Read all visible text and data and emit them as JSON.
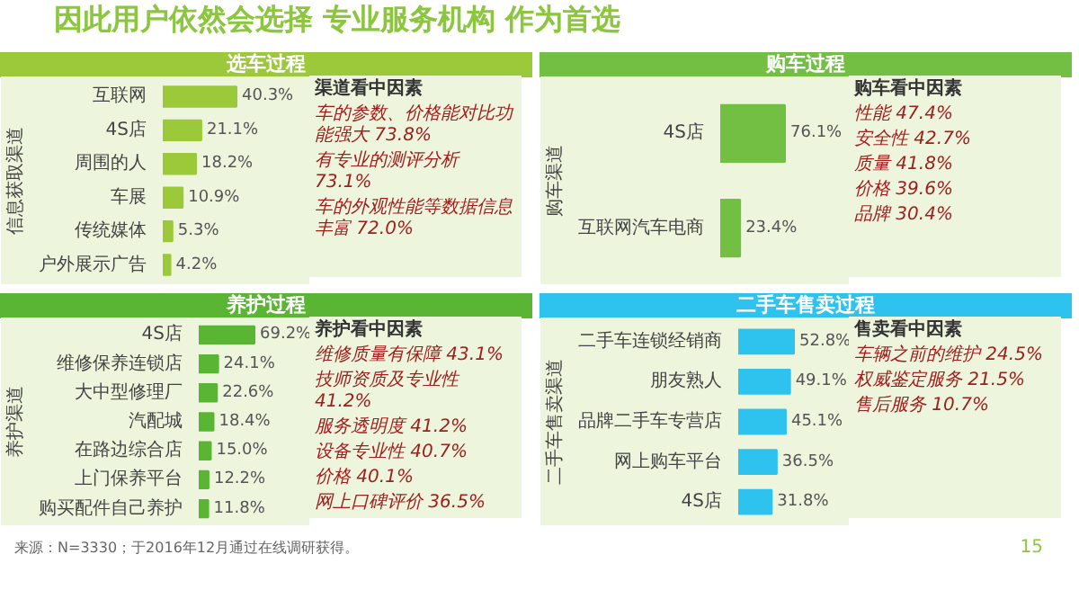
{
  "chart_data": [
    {
      "type": "other",
      "title": "因此用户依然会选择 专业服务机构 作为首选",
      "annotations": [
        "来源：N=3330；于2016年12月通过在线调研获得。",
        "15"
      ]
    },
    {
      "type": "bar",
      "orientation": "horizontal",
      "title": "选车过程",
      "ylabel": "信息获取渠道",
      "categories": [
        "互联网",
        "4S店",
        "周围的人",
        "车展",
        "传统媒体",
        "户外展示广告"
      ],
      "values": [
        40.3,
        21.1,
        18.2,
        10.9,
        5.3,
        4.2
      ],
      "value_labels": [
        "40.3%",
        "21.1%",
        "18.2%",
        "10.9%",
        "5.3%",
        "4.2%"
      ],
      "color": "#9cc93a",
      "annotations": [
        "渠道看中因素",
        "车的参数、价格能对比功能强大 73.8%",
        "有专业的测评分析 73.1%",
        "车的外观性能等数据信息丰富 72.0%"
      ]
    },
    {
      "type": "bar",
      "orientation": "horizontal",
      "title": "购车过程",
      "ylabel": "购车渠道",
      "categories": [
        "4S店",
        "互联网汽车电商"
      ],
      "values": [
        76.1,
        23.4
      ],
      "value_labels": [
        "76.1%",
        "23.4%"
      ],
      "color": "#72bf44",
      "annotations": [
        "购车看中因素",
        "性能 47.4%",
        "安全性 42.7%",
        "质量 41.8%",
        "价格 39.6%",
        "品牌 30.4%"
      ]
    },
    {
      "type": "bar",
      "orientation": "horizontal",
      "title": "养护过程",
      "ylabel": "养护渠道",
      "categories": [
        "4S店",
        "维修保养连锁店",
        "大中型修理厂",
        "汽配城",
        "在路边综合店",
        "上门保养平台",
        "购买配件自己养护"
      ],
      "values": [
        69.2,
        24.1,
        22.6,
        18.4,
        15.0,
        12.2,
        11.8
      ],
      "value_labels": [
        "69.2%",
        "24.1%",
        "22.6%",
        "18.4%",
        "15.0%",
        "12.2%",
        "11.8%"
      ],
      "color": "#5bb534",
      "annotations": [
        "养护看中因素",
        "维修质量有保障 43.1%",
        "技师资质及专业性 41.2%",
        "服务透明度 41.2%",
        "设备专业性 40.7%",
        "价格 40.1%",
        "网上口碑评价 36.5%"
      ]
    },
    {
      "type": "bar",
      "orientation": "horizontal",
      "title": "二手车售卖过程",
      "ylabel": "二手车售卖渠道",
      "categories": [
        "二手车连锁经销商",
        "朋友熟人",
        "品牌二手车专营店",
        "网上购车平台",
        "4S店"
      ],
      "values": [
        52.8,
        49.1,
        45.1,
        36.5,
        31.8
      ],
      "value_labels": [
        "52.8%",
        "49.1%",
        "45.1%",
        "36.5%",
        "31.8%"
      ],
      "color": "#2ec3ef",
      "annotations": [
        "售卖看中因素",
        "车辆之前的维护 24.5%",
        "权威鉴定服务 21.5%",
        "售后服务 10.7%"
      ]
    }
  ]
}
